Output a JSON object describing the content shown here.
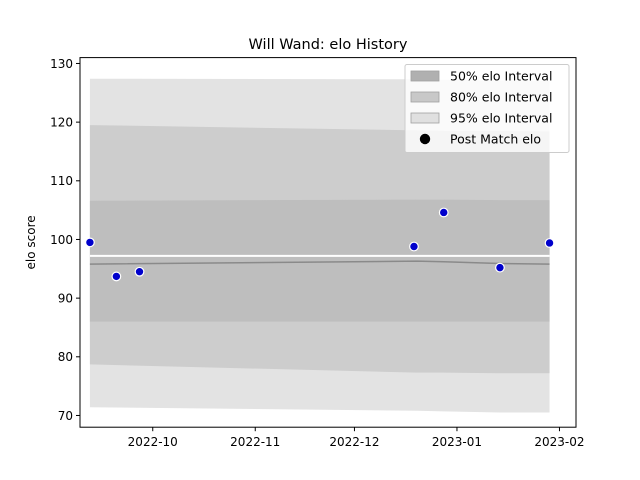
{
  "chart_data": {
    "type": "area",
    "title": "Will Wand: elo History",
    "xlabel": "",
    "ylabel": "elo score",
    "ylim": [
      68,
      131
    ],
    "yticks": [
      70,
      80,
      90,
      100,
      110,
      120,
      130
    ],
    "xlim": [
      "2022-09-09",
      "2023-02-06"
    ],
    "xticks": [
      {
        "label": "2022-10",
        "date": "2022-10-01"
      },
      {
        "label": "2022-11",
        "date": "2022-11-01"
      },
      {
        "label": "2022-12",
        "date": "2022-12-01"
      },
      {
        "label": "2023-01",
        "date": "2023-01-01"
      },
      {
        "label": "2023-02",
        "date": "2023-02-01"
      }
    ],
    "x": [
      "2022-09-12",
      "2022-12-20",
      "2022-12-28",
      "2023-01-14",
      "2023-01-29"
    ],
    "mean": [
      95.8,
      96.3,
      96.2,
      95.9,
      95.8
    ],
    "bands": [
      {
        "name": "95% elo Interval",
        "color": "#e3e3e3",
        "lower": [
          71.4,
          70.8,
          70.7,
          70.5,
          70.5
        ],
        "upper": [
          127.4,
          127.3,
          127.2,
          127.1,
          127.0
        ]
      },
      {
        "name": "80% elo Interval",
        "color": "#cdcdcd",
        "lower": [
          78.7,
          77.3,
          77.3,
          77.2,
          77.2
        ],
        "upper": [
          119.5,
          118.6,
          118.5,
          118.5,
          118.4
        ]
      },
      {
        "name": "50% elo Interval",
        "color": "#bebebe",
        "lower": [
          86.0,
          86.0,
          86.0,
          86.0,
          86.0
        ],
        "upper": [
          106.6,
          106.8,
          106.8,
          106.7,
          106.7
        ]
      }
    ],
    "reference_line": {
      "value": 97.2,
      "color": "#ffffff"
    },
    "points": {
      "name": "Post Match elo",
      "color": "#0000cc",
      "x": [
        "2022-09-12",
        "2022-09-20",
        "2022-09-27",
        "2022-12-19",
        "2022-12-28",
        "2023-01-14",
        "2023-01-29"
      ],
      "y": [
        99.5,
        93.7,
        94.5,
        98.8,
        104.6,
        95.2,
        99.4
      ]
    },
    "legend": {
      "position": "upper right",
      "entries": [
        {
          "label": "50% elo Interval",
          "kind": "patch",
          "color": "#b0b0b0"
        },
        {
          "label": "80% elo Interval",
          "kind": "patch",
          "color": "#c8c8c8"
        },
        {
          "label": "95% elo Interval",
          "kind": "patch",
          "color": "#e0e0e0"
        },
        {
          "label": "Post Match elo",
          "kind": "marker",
          "color": "#000000"
        }
      ]
    }
  }
}
